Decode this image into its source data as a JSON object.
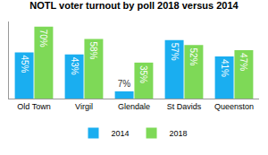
{
  "chart_data": {
    "type": "bar",
    "title": "NOTL voter turnout by poll 2018 versus 2014",
    "categories": [
      "Old Town",
      "Virgil",
      "Glendale",
      "St Davids",
      "Queenston"
    ],
    "series": [
      {
        "name": "2014",
        "color": "#1aaef0",
        "values": [
          45,
          43,
          7,
          57,
          41
        ],
        "value_labels": [
          "45%",
          "43%",
          "7%",
          "57%",
          "41%"
        ]
      },
      {
        "name": "2018",
        "color": "#7ed957",
        "values": [
          70,
          58,
          35,
          52,
          47
        ],
        "value_labels": [
          "70%",
          "58%",
          "35%",
          "52%",
          "47%"
        ]
      }
    ],
    "ylim": [
      0,
      75
    ],
    "grid": false,
    "legend": "bottom",
    "data_labels": true,
    "tick_labels": "x"
  }
}
